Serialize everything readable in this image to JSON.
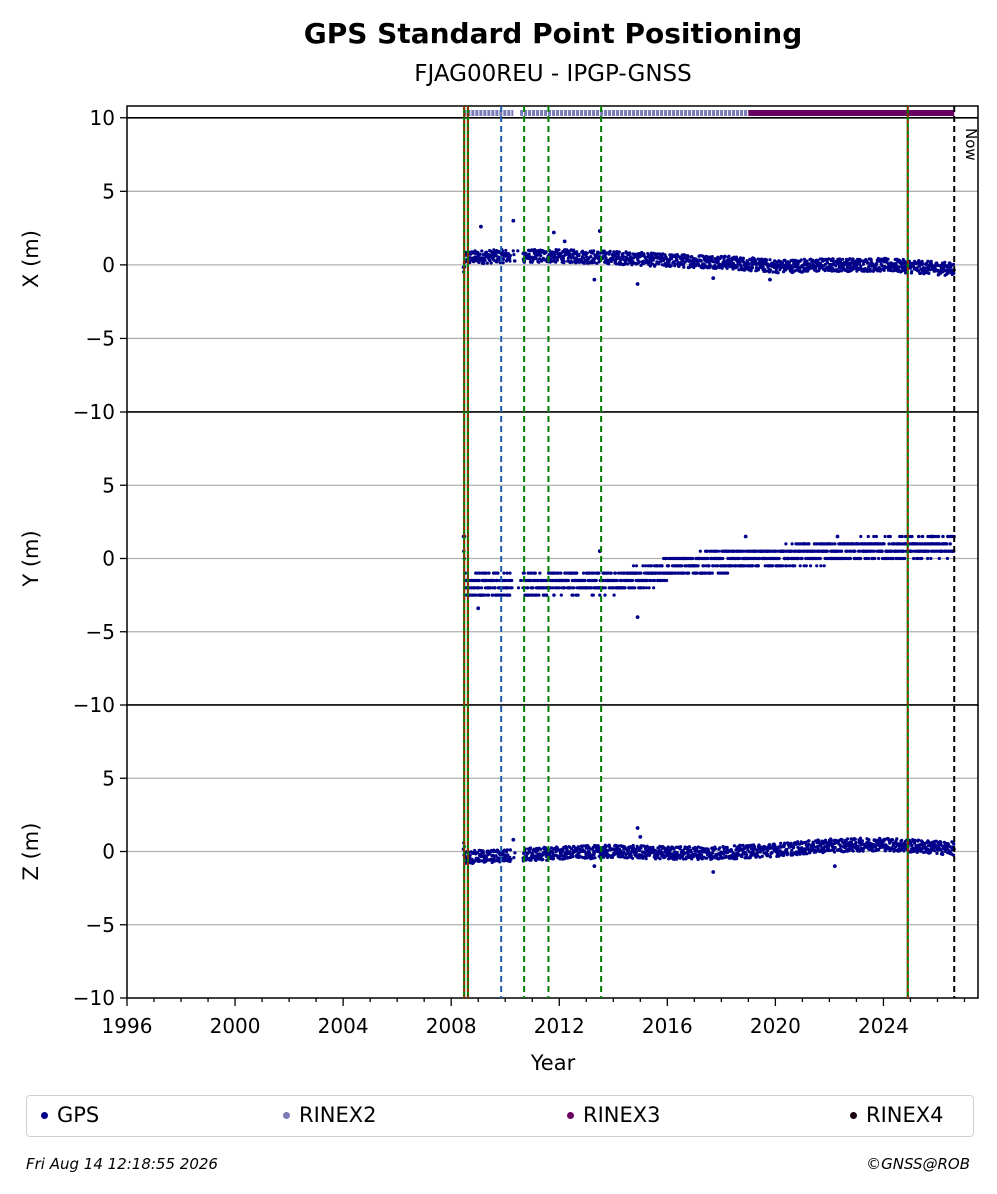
{
  "chart_data": {
    "type": "scatter",
    "title": "GPS Standard Point Positioning",
    "subtitle": "FJAG00REU - IPGP-GNSS",
    "xlabel": "Year",
    "xlim": [
      1996,
      2027.5
    ],
    "x_ticks": [
      "1996",
      "2000",
      "2004",
      "2008",
      "2012",
      "2016",
      "2020",
      "2024"
    ],
    "now_label": "Now",
    "now_year": 2026.62,
    "panels": [
      {
        "name": "x-panel",
        "ylabel": "X (m)",
        "ylim": [
          -10,
          10.8
        ],
        "y_ticks": [
          "10",
          "5",
          "0",
          "−5",
          "−10"
        ],
        "trend": [
          {
            "x": 2008.5,
            "y": 0.5
          },
          {
            "x": 2010,
            "y": 0.6
          },
          {
            "x": 2012,
            "y": 0.6
          },
          {
            "x": 2014,
            "y": 0.5
          },
          {
            "x": 2016,
            "y": 0.3
          },
          {
            "x": 2018,
            "y": 0.2
          },
          {
            "x": 2020,
            "y": -0.1
          },
          {
            "x": 2022,
            "y": 0.0
          },
          {
            "x": 2024,
            "y": 0.0
          },
          {
            "x": 2026.6,
            "y": -0.3
          }
        ],
        "outliers": [
          {
            "x": 2009.1,
            "y": 2.6
          },
          {
            "x": 2010.3,
            "y": 3.0
          },
          {
            "x": 2011.8,
            "y": 2.2
          },
          {
            "x": 2012.2,
            "y": 1.6
          },
          {
            "x": 2013.5,
            "y": 2.3
          },
          {
            "x": 2013.3,
            "y": -1.0
          },
          {
            "x": 2014.9,
            "y": -1.3
          },
          {
            "x": 2017.7,
            "y": -0.9
          },
          {
            "x": 2019.8,
            "y": -1.0
          }
        ]
      },
      {
        "name": "y-panel",
        "ylabel": "Y (m)",
        "ylim": [
          -10,
          10
        ],
        "y_ticks": [
          "5",
          "0",
          "−5",
          "−10"
        ],
        "trend": [
          {
            "x": 2008.5,
            "y": -1.8
          },
          {
            "x": 2010,
            "y": -1.8
          },
          {
            "x": 2012,
            "y": -1.7
          },
          {
            "x": 2014,
            "y": -1.6
          },
          {
            "x": 2015.5,
            "y": -1.2
          },
          {
            "x": 2016,
            "y": -0.6
          },
          {
            "x": 2018,
            "y": -0.2
          },
          {
            "x": 2020,
            "y": 0.1
          },
          {
            "x": 2022,
            "y": 0.4
          },
          {
            "x": 2024,
            "y": 0.7
          },
          {
            "x": 2026.6,
            "y": 0.9
          }
        ],
        "outliers": [
          {
            "x": 2009.0,
            "y": -3.4
          },
          {
            "x": 2013.5,
            "y": 0.5
          },
          {
            "x": 2014.9,
            "y": -4.0
          },
          {
            "x": 2018.9,
            "y": 1.5
          },
          {
            "x": 2022.3,
            "y": 1.5
          },
          {
            "x": 2025.8,
            "y": 1.5
          }
        ]
      },
      {
        "name": "z-panel",
        "ylabel": "Z (m)",
        "ylim": [
          -10,
          10
        ],
        "y_ticks": [
          "5",
          "0",
          "−5",
          "−10"
        ],
        "trend": [
          {
            "x": 2008.5,
            "y": -0.4
          },
          {
            "x": 2010,
            "y": -0.3
          },
          {
            "x": 2012,
            "y": -0.1
          },
          {
            "x": 2014,
            "y": 0.0
          },
          {
            "x": 2016,
            "y": -0.1
          },
          {
            "x": 2018,
            "y": -0.1
          },
          {
            "x": 2020,
            "y": 0.1
          },
          {
            "x": 2022,
            "y": 0.4
          },
          {
            "x": 2024,
            "y": 0.5
          },
          {
            "x": 2026.6,
            "y": 0.2
          }
        ],
        "outliers": [
          {
            "x": 2010.3,
            "y": 0.8
          },
          {
            "x": 2014.9,
            "y": 1.6
          },
          {
            "x": 2015.0,
            "y": 1.0
          },
          {
            "x": 2017.7,
            "y": -1.4
          },
          {
            "x": 2013.3,
            "y": -1.0
          },
          {
            "x": 2022.2,
            "y": -1.0
          }
        ]
      }
    ],
    "data_x_range": [
      2008.45,
      2026.62
    ],
    "data_gaps": [
      [
        2010.2,
        2010.65
      ]
    ],
    "rinex2_range": [
      2008.45,
      2019.0
    ],
    "rinex2_gap": [
      2010.3,
      2010.55
    ],
    "rinex3_range": [
      2019.0,
      2026.62
    ],
    "event_lines": [
      {
        "x": 2008.48,
        "kind": "red-green"
      },
      {
        "x": 2008.62,
        "kind": "red-green"
      },
      {
        "x": 2009.85,
        "kind": "blue-dashed"
      },
      {
        "x": 2010.7,
        "kind": "green-dashed"
      },
      {
        "x": 2011.6,
        "kind": "green-dashed"
      },
      {
        "x": 2013.55,
        "kind": "green-dashed"
      },
      {
        "x": 2024.9,
        "kind": "red-green"
      },
      {
        "x": 2026.62,
        "kind": "black-dashed"
      }
    ],
    "grid": true,
    "legend_position": "bottom",
    "legend": [
      {
        "label": "GPS",
        "color": "#00008b"
      },
      {
        "label": "RINEX2",
        "color": "#7b7bb8"
      },
      {
        "label": "RINEX3",
        "color": "#6a0060"
      },
      {
        "label": "RINEX4",
        "color": "#1a0010"
      }
    ]
  },
  "footer": {
    "timestamp": "Fri Aug 14 12:18:55 2026",
    "copyright": "©GNSS@ROB"
  },
  "colors": {
    "gps": "#00008b",
    "rinex2": "#7b7bb8",
    "rinex3": "#6a0060",
    "grid": "#b0b0b0",
    "event_green": "#008000",
    "event_red": "#e00000",
    "event_blue": "#1f5fb0"
  }
}
